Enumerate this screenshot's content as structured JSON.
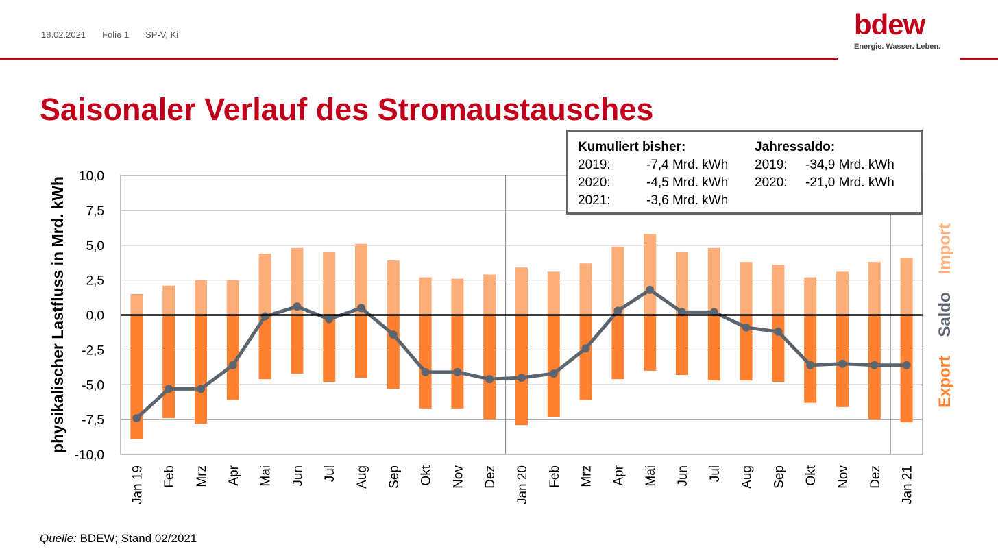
{
  "header": {
    "date": "18.02.2021",
    "slide": "Folie 1",
    "author": "SP-V, Ki"
  },
  "logo": {
    "word": "bdew",
    "tagline": "Energie. Wasser. Leben."
  },
  "title": "Saisonaler Verlauf des Stromaustausches",
  "infobox": {
    "left_heading": "Kumuliert bisher:",
    "left_rows": [
      {
        "year": "2019:",
        "value": "-7,4 Mrd. kWh"
      },
      {
        "year": "2020:",
        "value": "-4,5 Mrd. kWh"
      },
      {
        "year": "2021:",
        "value": "-3,6 Mrd. kWh"
      }
    ],
    "right_heading": "Jahressaldo:",
    "right_rows": [
      {
        "year": "2019:",
        "value": "-34,9 Mrd. kWh"
      },
      {
        "year": "2020:",
        "value": "-21,0 Mrd. kWh"
      }
    ]
  },
  "source": {
    "prefix": "Quelle:",
    "text": " BDEW; Stand 02/2021"
  },
  "colors": {
    "brand_red": "#c0001a",
    "import": "#fbad7a",
    "export": "#fd8130",
    "saldo": "#5a6570"
  },
  "chart_data": {
    "type": "bar",
    "ylabel": "physikalischer Lastfluss in Mrd. kWh",
    "ylim": [
      -10,
      10
    ],
    "yticks": [
      "10,0",
      "7,5",
      "5,0",
      "2,5",
      "0,0",
      "-2,5",
      "-5,0",
      "-7,5",
      "-10,0"
    ],
    "grid": true,
    "legend_placement": "right",
    "categories": [
      "Jan 19",
      "Feb",
      "Mrz",
      "Apr",
      "Mai",
      "Jun",
      "Jul",
      "Aug",
      "Sep",
      "Okt",
      "Nov",
      "Dez",
      "Jan 20",
      "Feb",
      "Mrz",
      "Apr",
      "Mai",
      "Jun",
      "Jul",
      "Aug",
      "Sep",
      "Okt",
      "Nov",
      "Dez",
      "Jan 21"
    ],
    "series": [
      {
        "name": "Import",
        "type": "bar",
        "values": [
          1.5,
          2.1,
          2.5,
          2.5,
          4.4,
          4.8,
          4.5,
          5.1,
          3.9,
          2.7,
          2.6,
          2.9,
          3.4,
          3.1,
          3.7,
          4.9,
          5.8,
          4.5,
          4.8,
          3.8,
          3.6,
          2.7,
          3.1,
          3.8,
          4.1
        ]
      },
      {
        "name": "Export",
        "type": "bar",
        "values": [
          -8.9,
          -7.4,
          -7.8,
          -6.1,
          -4.6,
          -4.2,
          -4.8,
          -4.5,
          -5.3,
          -6.7,
          -6.7,
          -7.5,
          -7.9,
          -7.3,
          -6.1,
          -4.6,
          -4.0,
          -4.3,
          -4.7,
          -4.7,
          -4.8,
          -6.3,
          -6.6,
          -7.5,
          -7.7
        ]
      },
      {
        "name": "Saldo",
        "type": "line",
        "values": [
          -7.4,
          -5.3,
          -5.3,
          -3.6,
          -0.1,
          0.6,
          -0.3,
          0.5,
          -1.4,
          -4.1,
          -4.1,
          -4.6,
          -4.5,
          -4.2,
          -2.4,
          0.3,
          1.8,
          0.2,
          0.2,
          -0.9,
          -1.2,
          -3.6,
          -3.5,
          -3.6,
          -3.6
        ]
      }
    ],
    "year_separators_after": [
      11,
      23
    ]
  }
}
